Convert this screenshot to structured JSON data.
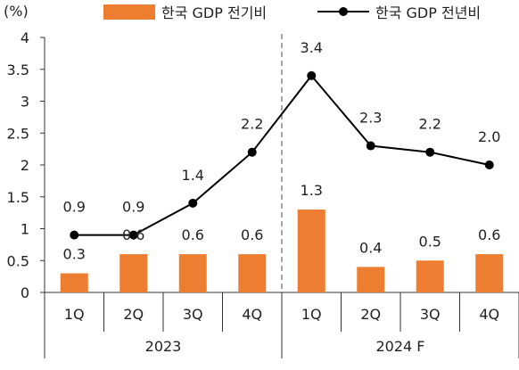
{
  "chart_data": {
    "type": "bar+line",
    "y_unit": "(%)",
    "ylim": [
      0,
      4
    ],
    "yticks": [
      "0",
      "0.5",
      "1",
      "1.5",
      "2",
      "2.5",
      "3",
      "3.5",
      "4"
    ],
    "categories": [
      "1Q",
      "2Q",
      "3Q",
      "4Q",
      "1Q",
      "2Q",
      "3Q",
      "4Q"
    ],
    "groups": [
      {
        "label": "2023",
        "start": 0,
        "end": 3
      },
      {
        "label": "2024 F",
        "start": 4,
        "end": 7
      }
    ],
    "forecast_divider_after_index": 4,
    "series": [
      {
        "name": "한국 GDP 전기비",
        "type": "bar",
        "color": "#ED7D31",
        "values": [
          0.3,
          0.6,
          0.6,
          0.6,
          1.3,
          0.4,
          0.5,
          0.6
        ],
        "labels": [
          "0.3",
          "0.6",
          "0.6",
          "0.6",
          "1.3",
          "0.4",
          "0.5",
          "0.6"
        ]
      },
      {
        "name": "한국 GDP 전년비",
        "type": "line",
        "color": "#000000",
        "values": [
          0.9,
          0.9,
          1.4,
          2.2,
          3.4,
          2.3,
          2.2,
          2.0
        ],
        "labels": [
          "0.9",
          "0.9",
          "1.4",
          "2.2",
          "3.4",
          "2.3",
          "2.2",
          "2.0"
        ]
      }
    ],
    "legend": "top",
    "grid": false
  }
}
